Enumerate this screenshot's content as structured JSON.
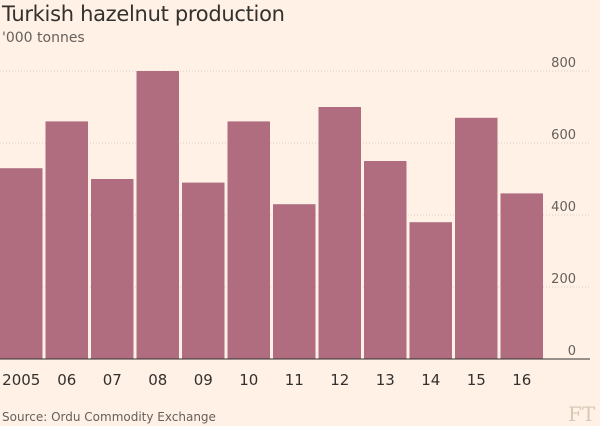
{
  "title": "Turkish hazelnut production",
  "subtitle": "'000 tonnes",
  "source": "Source: Ordu Commodity Exchange",
  "logo": "FT",
  "colors": {
    "bar": "#b06d80",
    "grid": "#d9cfc6",
    "axis": "#33302e",
    "background": "#fff1e5"
  },
  "chart_data": {
    "type": "bar",
    "title": "Turkish hazelnut production",
    "subtitle": "'000 tonnes",
    "categories": [
      "2005",
      "06",
      "07",
      "08",
      "09",
      "10",
      "11",
      "12",
      "13",
      "14",
      "15",
      "16"
    ],
    "values": [
      530,
      660,
      500,
      800,
      490,
      660,
      430,
      700,
      550,
      380,
      670,
      460
    ],
    "ylim": [
      0,
      800
    ],
    "yticks": [
      0,
      200,
      400,
      600,
      800
    ],
    "grid": true,
    "y_axis_side": "right"
  }
}
